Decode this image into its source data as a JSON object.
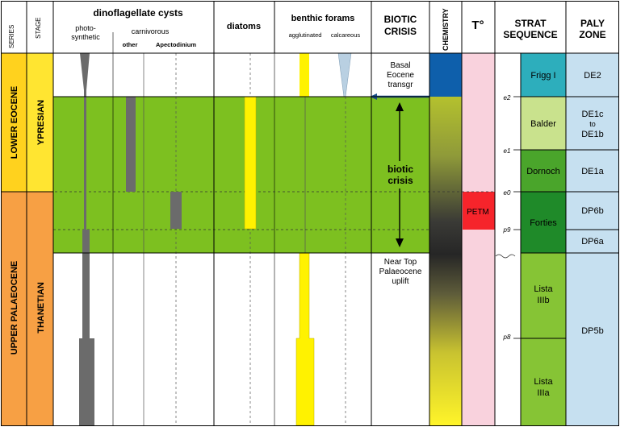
{
  "headers": {
    "series": "SERIES",
    "stage": "STAGE",
    "dino": "dinoflagellate cysts",
    "photo_line1": "photo-",
    "photo_line2": "synthetic",
    "carnivorous": "carnivorous",
    "other": "other",
    "apecto": "Apectodinium",
    "diatoms": "diatoms",
    "benthic": "benthic forams",
    "agglutinated": "agglutinated",
    "calcareous": "calcareous",
    "biotic_line1": "BIOTIC",
    "biotic_line2": "CRISIS",
    "chemistry": "CHEMISTRY",
    "temp": "T°",
    "strat_line1": "STRAT",
    "strat_line2": "SEQUENCE",
    "paly_line1": "PALY",
    "paly_line2": "ZONE"
  },
  "series": {
    "lower": "LOWER EOCENE",
    "upper": "UPPER PALAEOCENE"
  },
  "stages": {
    "ypresian": "YPRESIAN",
    "thanetian": "THANETIAN"
  },
  "annotations": {
    "basal_1": "Basal",
    "basal_2": "Eocene",
    "basal_3": "transgr",
    "crisis_1": "biotic",
    "crisis_2": "crisis",
    "near_1": "Near Top",
    "near_2": "Palaeocene",
    "near_3": "uplift",
    "petm": "PETM"
  },
  "surfaces": [
    "e2",
    "e1",
    "e0",
    "p9",
    "p8"
  ],
  "sequences": {
    "frigg": "Frigg I",
    "balder": "Balder",
    "dornoch": "Dornoch",
    "forties": "Forties",
    "lista3b_1": "Lista",
    "lista3b_2": "IIIb",
    "lista3a_1": "Lista",
    "lista3a_2": "IIIa"
  },
  "paly": {
    "de2": "DE2",
    "de1c_1": "DE1c",
    "de1c_2": "to",
    "de1c_3": "DE1b",
    "de1a": "DE1a",
    "dp6b": "DP6b",
    "dp6a": "DP6a",
    "dp5b": "DP5b"
  },
  "colors": {
    "green": "#7dc020",
    "series_orange": "#f7a044",
    "series_yellow": "#ffd21e",
    "stage_yellow": "#ffe531",
    "bar_grey": "#6b6b6b",
    "bar_yellow": "#fff200",
    "bar_blue": "#b9d0e2",
    "chem_blue": "#0e5fab",
    "temp_pink": "#f9d2dd",
    "petm_red": "#f6242b",
    "frigg": "#2daebc",
    "balder": "#c9e28d",
    "dornoch": "#4aa52b",
    "forties": "#1f8a29",
    "lista": "#86c435",
    "paly_blue": "#c6e0f0"
  }
}
